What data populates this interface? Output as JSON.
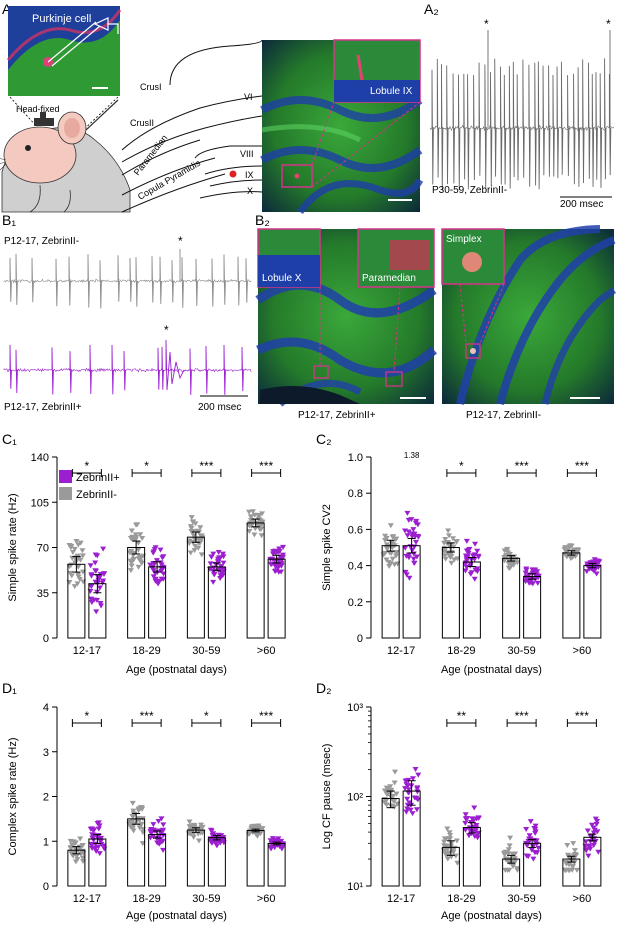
{
  "panels": {
    "A1": "A₁",
    "A2": "A₂",
    "B1": "B₁",
    "B2": "B₂",
    "C1": "C₁",
    "C2": "C₂",
    "D1": "D₁",
    "D2": "D₂"
  },
  "colors": {
    "zebrin_pos": "#9b1fd0",
    "zebrin_neg": "#9a9a9a",
    "tissue_green": "#2e8f2a",
    "tissue_blue": "#1f3fa8",
    "inset_border": "#d6338a"
  },
  "panelA1": {
    "inset_label": "Purkinje cell",
    "mouse_label": "Head-fixed",
    "lobule_labels": [
      "CrusI",
      "CrusII",
      "Paramedian",
      "Copula Pyramidis",
      "VI",
      "VIII",
      "IX",
      "X"
    ],
    "micro_inset_label": "Lobule IX"
  },
  "panelA2": {
    "caption": "P30-59, ZebrinII-",
    "scalebar": "200 msec",
    "star": "*"
  },
  "panelB1": {
    "top_label": "P12-17, ZebrinII-",
    "bottom_label": "P12-17, ZebrinII+",
    "scalebar": "200 msec",
    "star": "*"
  },
  "panelB2": {
    "left_insets": [
      "Lobule X",
      "Paramedian"
    ],
    "left_caption": "P12-17, ZebrinII+",
    "right_inset": "Simplex",
    "right_caption": "P12-17, ZebrinII-"
  },
  "legend": [
    "ZebrinII+",
    "ZebrinII-"
  ],
  "chart_data": [
    {
      "id": "C1",
      "type": "bar",
      "ylabel": "Simple spike rate (Hz)",
      "xlabel": "Age (postnatal days)",
      "categories": [
        "12-17",
        "18-29",
        "30-59",
        ">60"
      ],
      "ylim": [
        0,
        140
      ],
      "yticks": [
        0,
        35,
        70,
        105,
        140
      ],
      "scale": "linear",
      "ytick_labels": [
        "0",
        "35",
        "70",
        "105",
        "140"
      ],
      "series": [
        {
          "name": "ZebrinII-",
          "values": [
            57,
            70,
            78,
            89
          ],
          "errors": [
            6,
            5,
            4,
            3
          ]
        },
        {
          "name": "ZebrinII+",
          "values": [
            42,
            55,
            55,
            61
          ],
          "errors": [
            7,
            4,
            3,
            3
          ]
        }
      ],
      "significance": [
        "*",
        "*",
        "***",
        "***"
      ],
      "annotations": []
    },
    {
      "id": "C2",
      "type": "bar",
      "ylabel": "Simple spike CV2",
      "xlabel": "Age (postnatal days)",
      "categories": [
        "12-17",
        "18-29",
        "30-59",
        ">60"
      ],
      "ylim": [
        0,
        1.0
      ],
      "yticks": [
        0,
        0.2,
        0.4,
        0.6,
        0.8,
        1.0
      ],
      "scale": "linear",
      "ytick_labels": [
        "0",
        "0.2",
        "0.4",
        "0.6",
        "0.8",
        "1.0"
      ],
      "series": [
        {
          "name": "ZebrinII-",
          "values": [
            0.51,
            0.5,
            0.44,
            0.47
          ],
          "errors": [
            0.03,
            0.025,
            0.015,
            0.012
          ]
        },
        {
          "name": "ZebrinII+",
          "values": [
            0.51,
            0.42,
            0.34,
            0.4
          ],
          "errors": [
            0.04,
            0.025,
            0.015,
            0.012
          ]
        }
      ],
      "significance": [
        "",
        "*",
        "***",
        "***"
      ],
      "annotations": [
        "1.38"
      ]
    },
    {
      "id": "D1",
      "type": "bar",
      "ylabel": "Complex spike rate (Hz)",
      "xlabel": "Age (postnatal days)",
      "categories": [
        "12-17",
        "18-29",
        "30-59",
        ">60"
      ],
      "ylim": [
        0,
        4
      ],
      "yticks": [
        0,
        1,
        2,
        3,
        4
      ],
      "scale": "linear",
      "ytick_labels": [
        "0",
        "1",
        "2",
        "3",
        "4"
      ],
      "series": [
        {
          "name": "ZebrinII-",
          "values": [
            0.8,
            1.5,
            1.25,
            1.24
          ],
          "errors": [
            0.08,
            0.12,
            0.05,
            0.03
          ]
        },
        {
          "name": "ZebrinII+",
          "values": [
            1.05,
            1.15,
            1.08,
            0.95
          ],
          "errors": [
            0.1,
            0.08,
            0.05,
            0.03
          ]
        }
      ],
      "significance": [
        "*",
        "***",
        "*",
        "***"
      ],
      "annotations": []
    },
    {
      "id": "D2",
      "type": "bar",
      "ylabel": "Log CF pause (msec)",
      "xlabel": "Age (postnatal days)",
      "categories": [
        "12-17",
        "18-29",
        "30-59",
        ">60"
      ],
      "ylim": [
        10,
        1000
      ],
      "yticks": [
        10,
        100,
        1000
      ],
      "scale": "log",
      "ytick_labels": [
        "10¹",
        "10²",
        "10³"
      ],
      "series": [
        {
          "name": "ZebrinII-",
          "values": [
            95,
            27,
            20,
            20
          ],
          "errors": [
            20,
            5,
            2,
            1.5
          ]
        },
        {
          "name": "ZebrinII+",
          "values": [
            115,
            45,
            30,
            35
          ],
          "errors": [
            35,
            6,
            3,
            3
          ]
        }
      ],
      "significance": [
        "",
        "**",
        "***",
        "***"
      ],
      "annotations": []
    }
  ]
}
